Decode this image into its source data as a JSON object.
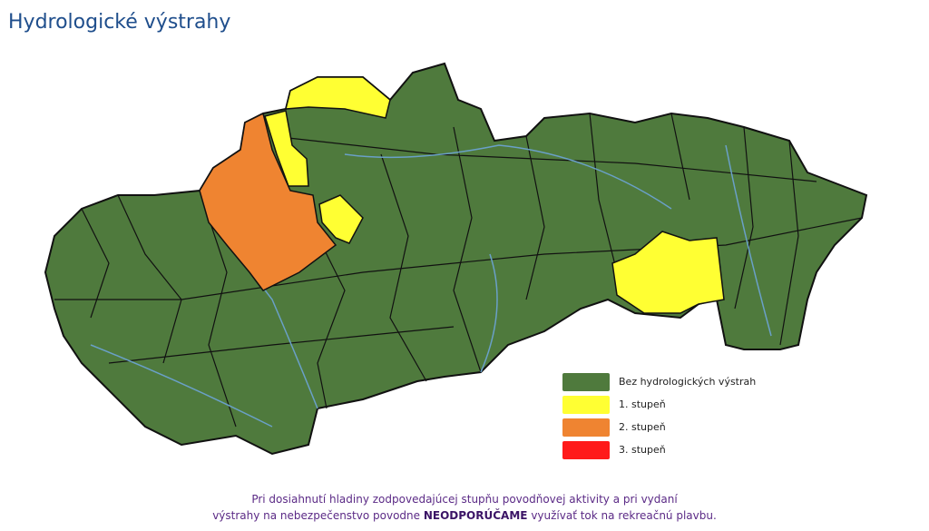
{
  "title": "Hydrologické výstrahy",
  "colors": {
    "none": "#4f7a3d",
    "level1": "#ffff33",
    "level2": "#ef8431",
    "level3": "#ff1a1a",
    "rivers": "#6aa0c8",
    "border": "#111111"
  },
  "legend": [
    {
      "label": "Bez hydrologických výstrah",
      "color": "#4f7a3d"
    },
    {
      "label": "1. stupeň",
      "color": "#ffff33"
    },
    {
      "label": "2. stupeň",
      "color": "#ef8431"
    },
    {
      "label": "3. stupeň",
      "color": "#ff1a1a"
    }
  ],
  "note": {
    "line1": "Pri dosiahnutí hladiny zodpovedajúcej stupňu povodňovej aktivity a pri vydaní",
    "line2_pre": "výstrahy na nebezpečenstvo povodne",
    "line2_bold": "NEODPORÚČAME",
    "line2_post": "využívať tok na rekreačnú plavbu."
  }
}
